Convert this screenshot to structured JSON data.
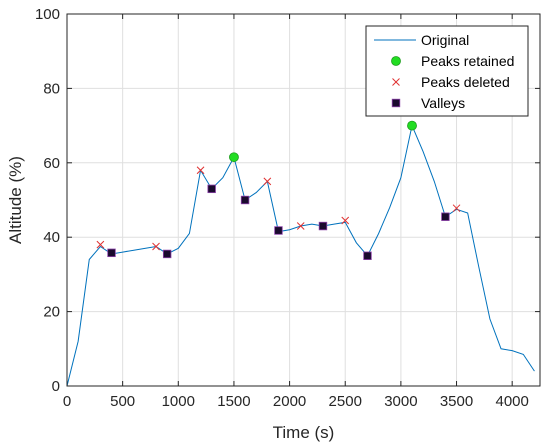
{
  "chart_data": {
    "type": "line",
    "title": "",
    "xlabel": "Time (s)",
    "ylabel": "Altitude (%)",
    "xlim": [
      0,
      4250
    ],
    "ylim": [
      0,
      100
    ],
    "xticks": [
      0,
      500,
      1000,
      1500,
      2000,
      2500,
      3000,
      3500,
      4000
    ],
    "yticks": [
      0,
      20,
      40,
      60,
      80,
      100
    ],
    "grid": true,
    "legend_position": "top-right",
    "series": [
      {
        "name": "Original",
        "kind": "line",
        "color": "#0072BD",
        "points": [
          [
            0,
            0
          ],
          [
            100,
            12
          ],
          [
            200,
            34
          ],
          [
            300,
            37.5
          ],
          [
            400,
            35.5
          ],
          [
            500,
            36
          ],
          [
            600,
            36.5
          ],
          [
            700,
            37
          ],
          [
            800,
            37.5
          ],
          [
            900,
            35.5
          ],
          [
            1000,
            37
          ],
          [
            1100,
            41
          ],
          [
            1200,
            58
          ],
          [
            1300,
            53
          ],
          [
            1400,
            56
          ],
          [
            1500,
            61.5
          ],
          [
            1600,
            50
          ],
          [
            1700,
            52
          ],
          [
            1800,
            55
          ],
          [
            1900,
            41.5
          ],
          [
            2000,
            42
          ],
          [
            2100,
            43
          ],
          [
            2200,
            43.5
          ],
          [
            2300,
            43
          ],
          [
            2400,
            43.5
          ],
          [
            2500,
            44
          ],
          [
            2600,
            38.5
          ],
          [
            2700,
            35
          ],
          [
            2800,
            41
          ],
          [
            2900,
            48
          ],
          [
            3000,
            56
          ],
          [
            3100,
            70
          ],
          [
            3200,
            63
          ],
          [
            3300,
            55
          ],
          [
            3400,
            45.5
          ],
          [
            3500,
            47.5
          ],
          [
            3600,
            46.5
          ],
          [
            3700,
            32
          ],
          [
            3800,
            18
          ],
          [
            3900,
            10
          ],
          [
            4000,
            9.5
          ],
          [
            4100,
            8.5
          ],
          [
            4200,
            4
          ]
        ]
      },
      {
        "name": "Peaks retained",
        "kind": "circle",
        "color": "#22DD22",
        "points": [
          [
            1500,
            61.5
          ],
          [
            3100,
            70
          ]
        ]
      },
      {
        "name": "Peaks deleted",
        "kind": "cross",
        "color": "#E03030",
        "points": [
          [
            300,
            38
          ],
          [
            800,
            37.5
          ],
          [
            1200,
            58
          ],
          [
            1800,
            55
          ],
          [
            2100,
            43
          ],
          [
            2500,
            44.5
          ],
          [
            3500,
            47.8
          ]
        ]
      },
      {
        "name": "Valleys",
        "kind": "square",
        "color": "#1A0A2E",
        "points": [
          [
            400,
            35.8
          ],
          [
            900,
            35.5
          ],
          [
            1300,
            53
          ],
          [
            1600,
            50
          ],
          [
            1900,
            41.8
          ],
          [
            2300,
            43
          ],
          [
            2700,
            35
          ],
          [
            3400,
            45.5
          ]
        ]
      }
    ]
  }
}
